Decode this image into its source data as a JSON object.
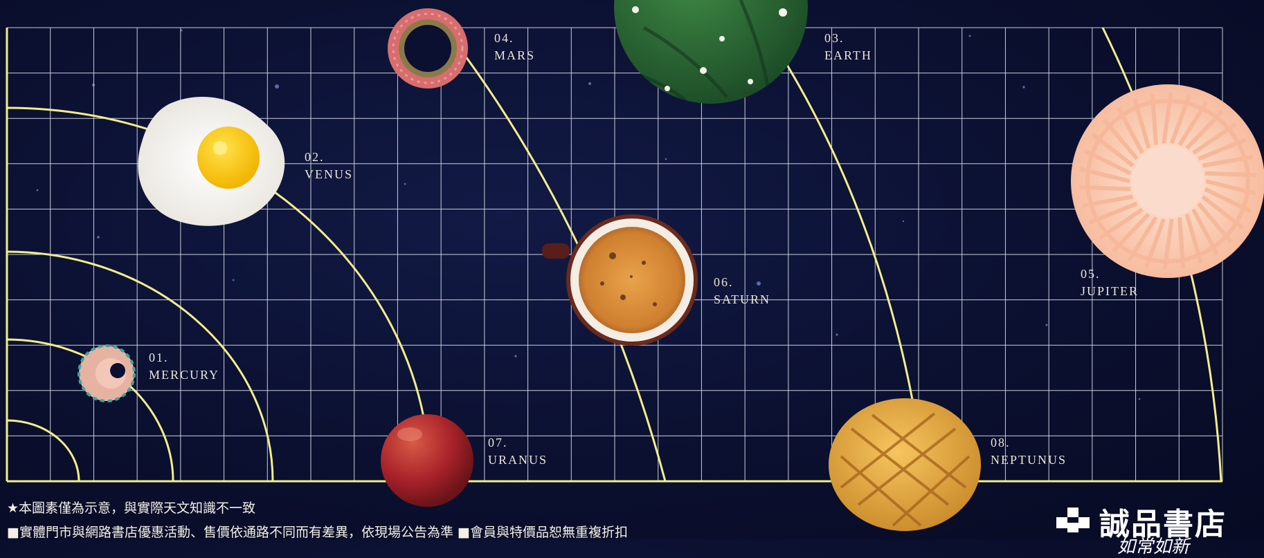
{
  "planets": [
    {
      "id": "mercury",
      "number": "01.",
      "name": "MERCURY",
      "object": "pencil shaving"
    },
    {
      "id": "venus",
      "number": "02.",
      "name": "VENUS",
      "object": "fried egg"
    },
    {
      "id": "earth",
      "number": "03.",
      "name": "EARTH",
      "object": "cactus"
    },
    {
      "id": "mars",
      "number": "04.",
      "name": "MARS",
      "object": "tape roll"
    },
    {
      "id": "jupiter",
      "number": "05.",
      "name": "JUPITER",
      "object": "fan"
    },
    {
      "id": "saturn",
      "number": "06.",
      "name": "SATURN",
      "object": "coffee cup"
    },
    {
      "id": "uranus",
      "number": "07.",
      "name": "URANUS",
      "object": "peach"
    },
    {
      "id": "neptune",
      "number": "08.",
      "name": "NEPTUNUS",
      "object": "pineapple bun"
    }
  ],
  "footer": {
    "note": "★本圖素僅為示意，與實際天文知識不一致",
    "terms": "■實體門市與網路書店優惠活動、售價依通路不同而有差異，依現場公告為準 ■會員與特價品恕無重複折扣"
  },
  "brand": {
    "name": "誠品書店",
    "tagline": "如常如新"
  },
  "colors": {
    "background": "#0b1030",
    "grid": "#dfe3ee",
    "orbit": "#f3ee8a",
    "label": "#e9e6d6"
  }
}
